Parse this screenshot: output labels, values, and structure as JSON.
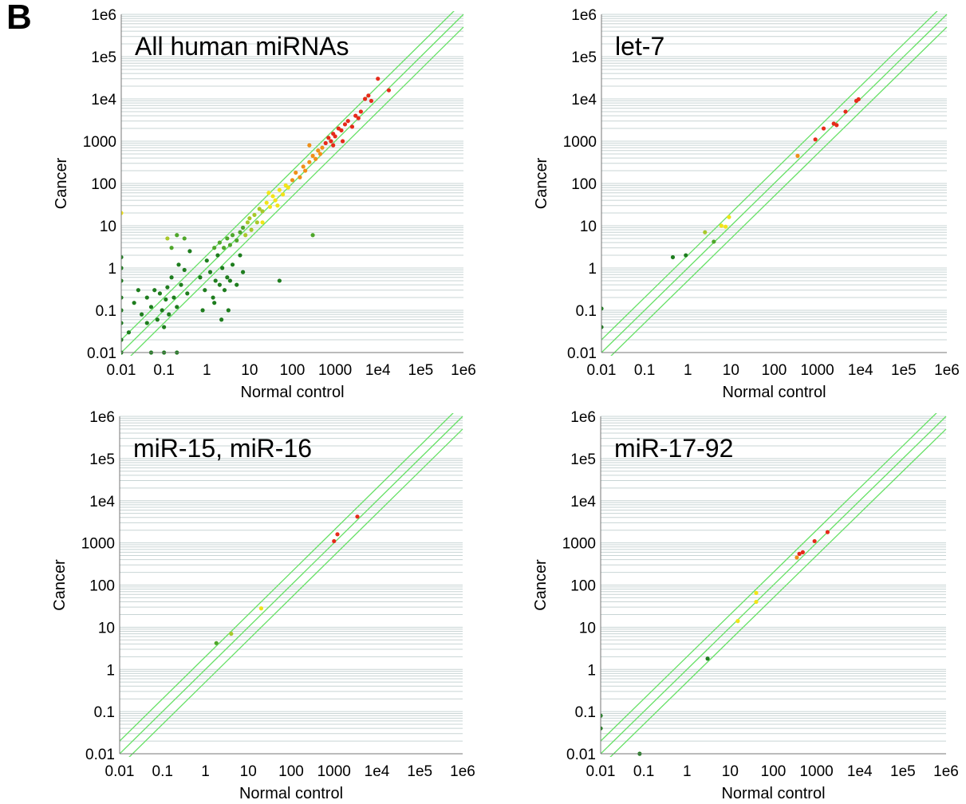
{
  "figure": {
    "panel_letter": "B"
  },
  "tick_labels": [
    "0.01",
    "0.1",
    "1",
    "10",
    "100",
    "1000",
    "1e4",
    "1e5",
    "1e6"
  ],
  "colors": {
    "grid": "#c8d4d4",
    "diagonal": "#66e066",
    "dark_green": "#1e7d1e",
    "green": "#4ea62a",
    "yellow_green": "#a8c82a",
    "yellow": "#f2e418",
    "orange": "#f09018",
    "red": "#e62a1a"
  },
  "chart_data": [
    {
      "type": "scatter",
      "title": "All human miRNAs",
      "xlabel": "Normal control",
      "ylabel": "Cancer",
      "xscale": "log",
      "yscale": "log",
      "xlim": [
        0.01,
        1000000
      ],
      "ylim": [
        0.01,
        1000000
      ],
      "grid": true,
      "reference_lines": [
        1,
        2,
        0.5
      ],
      "points": [
        [
          0.01,
          0.01,
          "#1e7d1e"
        ],
        [
          0.01,
          0.02,
          "#1e7d1e"
        ],
        [
          0.01,
          0.05,
          "#1e7d1e"
        ],
        [
          0.01,
          0.1,
          "#1e7d1e"
        ],
        [
          0.01,
          0.2,
          "#1e7d1e"
        ],
        [
          0.01,
          0.5,
          "#1e7d1e"
        ],
        [
          0.01,
          1,
          "#1e7d1e"
        ],
        [
          0.01,
          1.8,
          "#1e7d1e"
        ],
        [
          0.01,
          20,
          "#f2e418"
        ],
        [
          0.015,
          0.03,
          "#1e7d1e"
        ],
        [
          0.02,
          0.15,
          "#1e7d1e"
        ],
        [
          0.025,
          0.3,
          "#1e7d1e"
        ],
        [
          0.03,
          0.08,
          "#1e7d1e"
        ],
        [
          0.04,
          0.2,
          "#1e7d1e"
        ],
        [
          0.04,
          0.05,
          "#1e7d1e"
        ],
        [
          0.05,
          0.12,
          "#1e7d1e"
        ],
        [
          0.06,
          0.3,
          "#1e7d1e"
        ],
        [
          0.07,
          0.06,
          "#1e7d1e"
        ],
        [
          0.08,
          0.25,
          "#1e7d1e"
        ],
        [
          0.09,
          0.1,
          "#1e7d1e"
        ],
        [
          0.1,
          0.04,
          "#1e7d1e"
        ],
        [
          0.11,
          0.18,
          "#1e7d1e"
        ],
        [
          0.12,
          0.35,
          "#1e7d1e"
        ],
        [
          0.13,
          0.08,
          "#1e7d1e"
        ],
        [
          0.15,
          0.6,
          "#1e7d1e"
        ],
        [
          0.17,
          0.2,
          "#1e7d1e"
        ],
        [
          0.2,
          0.12,
          "#1e7d1e"
        ],
        [
          0.22,
          1.2,
          "#1e7d1e"
        ],
        [
          0.25,
          0.4,
          "#1e7d1e"
        ],
        [
          0.3,
          0.9,
          "#1e7d1e"
        ],
        [
          0.35,
          0.25,
          "#1e7d1e"
        ],
        [
          0.4,
          2.5,
          "#1e7d1e"
        ],
        [
          0.12,
          5,
          "#a8c82a"
        ],
        [
          0.2,
          6,
          "#4ea62a"
        ],
        [
          0.3,
          5,
          "#4ea62a"
        ],
        [
          0.15,
          3,
          "#4ea62a"
        ],
        [
          0.05,
          0.01,
          "#1e7d1e"
        ],
        [
          0.1,
          0.01,
          "#1e7d1e"
        ],
        [
          0.2,
          0.01,
          "#1e7d1e"
        ],
        [
          0.7,
          0.6,
          "#1e7d1e"
        ],
        [
          0.9,
          0.3,
          "#1e7d1e"
        ],
        [
          1.0,
          1.5,
          "#1e7d1e"
        ],
        [
          1.2,
          0.8,
          "#1e7d1e"
        ],
        [
          1.4,
          0.2,
          "#1e7d1e"
        ],
        [
          1.6,
          0.5,
          "#1e7d1e"
        ],
        [
          1.8,
          2.0,
          "#1e7d1e"
        ],
        [
          2.0,
          0.4,
          "#1e7d1e"
        ],
        [
          2.3,
          1.0,
          "#1e7d1e"
        ],
        [
          2.6,
          0.3,
          "#1e7d1e"
        ],
        [
          3.0,
          0.6,
          "#1e7d1e"
        ],
        [
          3.5,
          0.5,
          "#1e7d1e"
        ],
        [
          4.0,
          1.2,
          "#1e7d1e"
        ],
        [
          5.0,
          0.4,
          "#1e7d1e"
        ],
        [
          6.0,
          2.0,
          "#1e7d1e"
        ],
        [
          7.0,
          0.8,
          "#1e7d1e"
        ],
        [
          0.8,
          0.1,
          "#1e7d1e"
        ],
        [
          1.5,
          0.15,
          "#1e7d1e"
        ],
        [
          2.2,
          0.06,
          "#1e7d1e"
        ],
        [
          3.2,
          0.1,
          "#1e7d1e"
        ],
        [
          1.5,
          3.0,
          "#4ea62a"
        ],
        [
          2.0,
          4.0,
          "#4ea62a"
        ],
        [
          2.5,
          3.0,
          "#4ea62a"
        ],
        [
          3.0,
          5.0,
          "#4ea62a"
        ],
        [
          3.5,
          3.5,
          "#4ea62a"
        ],
        [
          4.0,
          6.0,
          "#4ea62a"
        ],
        [
          5.0,
          4.5,
          "#4ea62a"
        ],
        [
          6.0,
          7.0,
          "#4ea62a"
        ],
        [
          7.0,
          9.0,
          "#4ea62a"
        ],
        [
          8.0,
          6.0,
          "#a8c82a"
        ],
        [
          9.0,
          12.0,
          "#a8c82a"
        ],
        [
          10.0,
          15.0,
          "#a8c82a"
        ],
        [
          11.0,
          8.0,
          "#a8c82a"
        ],
        [
          13.0,
          18.0,
          "#a8c82a"
        ],
        [
          15.0,
          12.0,
          "#a8c82a"
        ],
        [
          17.0,
          25.0,
          "#a8c82a"
        ],
        [
          20.0,
          22.0,
          "#a8c82a"
        ],
        [
          25.0,
          35.0,
          "#f2e418"
        ],
        [
          30.0,
          28.0,
          "#f2e418"
        ],
        [
          35.0,
          50.0,
          "#f2e418"
        ],
        [
          40.0,
          40.0,
          "#f2e418"
        ],
        [
          50.0,
          70.0,
          "#f2e418"
        ],
        [
          60.0,
          55.0,
          "#f2e418"
        ],
        [
          70.0,
          90.0,
          "#f2e418"
        ],
        [
          80.0,
          80.0,
          "#f2e418"
        ],
        [
          20.0,
          12.0,
          "#f2e418"
        ],
        [
          45.0,
          30.0,
          "#f2e418"
        ],
        [
          28.0,
          60.0,
          "#f2e418"
        ],
        [
          300.0,
          6.0,
          "#4ea62a"
        ],
        [
          50.0,
          0.5,
          "#1e7d1e"
        ],
        [
          100.0,
          120.0,
          "#f09018"
        ],
        [
          120.0,
          180.0,
          "#f09018"
        ],
        [
          150.0,
          140.0,
          "#f09018"
        ],
        [
          180.0,
          250.0,
          "#f09018"
        ],
        [
          200.0,
          200.0,
          "#f09018"
        ],
        [
          250.0,
          320.0,
          "#f09018"
        ],
        [
          300.0,
          450.0,
          "#f09018"
        ],
        [
          350.0,
          380.0,
          "#f09018"
        ],
        [
          400.0,
          600.0,
          "#f09018"
        ],
        [
          450.0,
          500.0,
          "#f09018"
        ],
        [
          500.0,
          700.0,
          "#f09018"
        ],
        [
          250.0,
          800.0,
          "#f09018"
        ],
        [
          600.0,
          900.0,
          "#e62a1a"
        ],
        [
          700.0,
          1200.0,
          "#e62a1a"
        ],
        [
          800.0,
          1000.0,
          "#e62a1a"
        ],
        [
          900.0,
          1500.0,
          "#e62a1a"
        ],
        [
          1000.0,
          1300.0,
          "#e62a1a"
        ],
        [
          1200.0,
          2000.0,
          "#e62a1a"
        ],
        [
          1400.0,
          1800.0,
          "#e62a1a"
        ],
        [
          1700.0,
          2500.0,
          "#e62a1a"
        ],
        [
          2000.0,
          3000.0,
          "#e62a1a"
        ],
        [
          2500.0,
          2200.0,
          "#e62a1a"
        ],
        [
          3000.0,
          4000.0,
          "#e62a1a"
        ],
        [
          3500.0,
          3500.0,
          "#e62a1a"
        ],
        [
          4000.0,
          5000.0,
          "#e62a1a"
        ],
        [
          1500.0,
          1000.0,
          "#e62a1a"
        ],
        [
          900.0,
          800.0,
          "#e62a1a"
        ],
        [
          5000.0,
          10000.0,
          "#e62a1a"
        ],
        [
          6000.0,
          12000.0,
          "#e62a1a"
        ],
        [
          7000.0,
          9000.0,
          "#e62a1a"
        ],
        [
          10000.0,
          30000.0,
          "#e62a1a"
        ],
        [
          18000.0,
          16000.0,
          "#e62a1a"
        ]
      ]
    },
    {
      "type": "scatter",
      "title": "let-7",
      "xlabel": "Normal control",
      "ylabel": "Cancer",
      "xscale": "log",
      "yscale": "log",
      "xlim": [
        0.01,
        1000000
      ],
      "ylim": [
        0.01,
        1000000
      ],
      "grid": true,
      "reference_lines": [
        1,
        2,
        0.5
      ],
      "points": [
        [
          0.01,
          0.11,
          "#1e7d1e"
        ],
        [
          0.01,
          0.04,
          "#1e7d1e"
        ],
        [
          0.45,
          1.8,
          "#1e7d1e"
        ],
        [
          0.9,
          2.0,
          "#1e7d1e"
        ],
        [
          2.5,
          7.0,
          "#a8c82a"
        ],
        [
          4.0,
          4.2,
          "#4ea62a"
        ],
        [
          6.0,
          10.0,
          "#f2e418"
        ],
        [
          7.5,
          9.5,
          "#f2e418"
        ],
        [
          9.0,
          16.0,
          "#f2e418"
        ],
        [
          350.0,
          450.0,
          "#f09018"
        ],
        [
          900.0,
          1100.0,
          "#e62a1a"
        ],
        [
          1400.0,
          2000.0,
          "#e62a1a"
        ],
        [
          2400.0,
          2600.0,
          "#e62a1a"
        ],
        [
          2800.0,
          2400.0,
          "#e62a1a"
        ],
        [
          4500.0,
          5000.0,
          "#e62a1a"
        ],
        [
          8000.0,
          9000.0,
          "#e62a1a"
        ],
        [
          9000.0,
          9800.0,
          "#e62a1a"
        ]
      ]
    },
    {
      "type": "scatter",
      "title": "miR-15, miR-16",
      "xlabel": "Normal control",
      "ylabel": "Cancer",
      "xscale": "log",
      "yscale": "log",
      "xlim": [
        0.01,
        1000000
      ],
      "ylim": [
        0.01,
        1000000
      ],
      "grid": true,
      "reference_lines": [
        1,
        2,
        0.5
      ],
      "points": [
        [
          1.8,
          4.2,
          "#4ea62a"
        ],
        [
          4.0,
          7.0,
          "#a8c82a"
        ],
        [
          20.0,
          28.0,
          "#f2e418"
        ],
        [
          1000.0,
          1100.0,
          "#e62a1a"
        ],
        [
          1200.0,
          1600.0,
          "#e62a1a"
        ],
        [
          3500.0,
          4200.0,
          "#e62a1a"
        ]
      ]
    },
    {
      "type": "scatter",
      "title": "miR-17-92",
      "xlabel": "Normal control",
      "ylabel": "Cancer",
      "xscale": "log",
      "yscale": "log",
      "xlim": [
        0.01,
        1000000
      ],
      "ylim": [
        0.01,
        1000000
      ],
      "grid": true,
      "reference_lines": [
        1,
        2,
        0.5
      ],
      "points": [
        [
          0.01,
          0.08,
          "#1e7d1e"
        ],
        [
          0.01,
          0.04,
          "#1e7d1e"
        ],
        [
          0.08,
          0.01,
          "#1e7d1e"
        ],
        [
          3.0,
          1.8,
          "#1e7d1e"
        ],
        [
          15.0,
          14.0,
          "#f2e418"
        ],
        [
          40.0,
          40.0,
          "#f2e418"
        ],
        [
          40.0,
          65.0,
          "#f2e418"
        ],
        [
          350.0,
          450.0,
          "#f09018"
        ],
        [
          400.0,
          550.0,
          "#e62a1a"
        ],
        [
          480.0,
          600.0,
          "#e62a1a"
        ],
        [
          900.0,
          1100.0,
          "#e62a1a"
        ],
        [
          1800.0,
          1800.0,
          "#e62a1a"
        ]
      ]
    }
  ]
}
